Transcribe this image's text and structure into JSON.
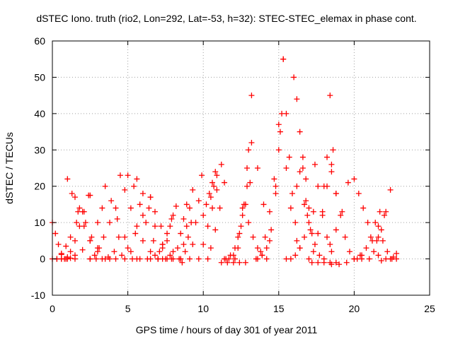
{
  "chart_data": {
    "type": "scatter",
    "title": "dSTEC Iono. truth (rio2, Lon=292, Lat=-53, h=32): STEC-STEC_elemax in phase cont.",
    "xlabel": "GPS time / hours of day 301 of year 2011",
    "ylabel": "dSTEC  / TECUs",
    "xlim": [
      0,
      25
    ],
    "ylim": [
      -10,
      60
    ],
    "xticks": [
      0,
      5,
      10,
      15,
      20,
      25
    ],
    "yticks": [
      -10,
      0,
      10,
      20,
      30,
      40,
      50,
      60
    ],
    "grid": true,
    "marker": "+",
    "color": "#ff0000",
    "series": [
      {
        "x": [
          0.0,
          0.2,
          0.4,
          0.6,
          0.8,
          1.0,
          1.2,
          1.5
        ],
        "y": [
          10,
          7,
          4,
          1.5,
          0,
          0.5,
          0.2,
          0
        ]
      },
      {
        "x": [
          0.0,
          0.3,
          0.6,
          0.9,
          1.2,
          1.5,
          1.8,
          2.1,
          2.4
        ],
        "y": [
          0,
          0,
          0,
          0,
          2,
          5,
          9,
          13,
          17.5
        ]
      },
      {
        "x": [
          0.3,
          0.6,
          0.9,
          1.2,
          1.6,
          2.0,
          2.5
        ],
        "y": [
          0,
          1.2,
          3.5,
          6,
          10,
          13,
          17.5
        ]
      },
      {
        "x": [
          1.0,
          1.3,
          1.7,
          2.1,
          2.5,
          3.0,
          3.5
        ],
        "y": [
          22,
          18,
          13,
          9,
          5,
          2,
          0
        ]
      },
      {
        "x": [
          0.6,
          1.0,
          1.5,
          2.0,
          2.5,
          3.0,
          3.3
        ],
        "y": [
          0,
          0,
          1,
          2.5,
          5,
          10,
          14
        ]
      },
      {
        "x": [
          1.5,
          1.8,
          2.2,
          2.6,
          3.0
        ],
        "y": [
          17,
          14,
          10,
          6,
          3
        ]
      },
      {
        "x": [
          2.5,
          2.8,
          3.1,
          3.4,
          3.8,
          4.2
        ],
        "y": [
          0,
          1,
          3,
          6,
          10,
          14
        ]
      },
      {
        "x": [
          3.5,
          3.9,
          4.3,
          4.8,
          5.2,
          5.6
        ],
        "y": [
          20,
          16,
          11,
          6,
          2,
          0
        ]
      },
      {
        "x": [
          2.5,
          2.9,
          3.3,
          3.7,
          4.1,
          4.4
        ],
        "y": [
          0,
          0,
          0,
          0.5,
          2,
          6
        ]
      },
      {
        "x": [
          4.5,
          4.8,
          5.2,
          5.6,
          6.0,
          6.5,
          7.0
        ],
        "y": [
          23,
          19,
          14,
          9,
          5,
          2,
          0
        ]
      },
      {
        "x": [
          3.8,
          4.2,
          4.6,
          5.0,
          5.5,
          6.0,
          6.5
        ],
        "y": [
          0,
          0,
          1,
          3,
          7,
          12,
          17
        ]
      },
      {
        "x": [
          5.0,
          5.4,
          5.8,
          6.2,
          6.7,
          7.1
        ],
        "y": [
          23,
          20,
          15,
          10,
          5,
          2
        ]
      },
      {
        "x": [
          5.6,
          6.0,
          6.4,
          6.8,
          7.3,
          7.8
        ],
        "y": [
          22,
          18,
          14,
          9,
          4,
          1
        ]
      },
      {
        "x": [
          4.8,
          5.3,
          5.8,
          6.3,
          6.8,
          7.3,
          7.8,
          8.0
        ],
        "y": [
          0,
          0,
          0,
          0,
          1,
          4,
          9,
          12
        ]
      },
      {
        "x": [
          6.5,
          6.8,
          7.2,
          7.6,
          8.0,
          8.5
        ],
        "y": [
          17,
          13,
          9,
          5,
          2,
          0
        ]
      },
      {
        "x": [
          7.0,
          7.3,
          7.6,
          7.9,
          8.2
        ],
        "y": [
          0,
          3,
          7,
          11,
          14.5
        ]
      },
      {
        "x": [
          6.5,
          7.0,
          7.5,
          7.9
        ],
        "y": [
          0,
          0,
          0,
          0
        ]
      },
      {
        "x": [
          7.3,
          7.6,
          8.0,
          8.4
        ],
        "y": [
          0,
          0,
          0,
          0
        ]
      },
      {
        "x": [
          8.3,
          8.5,
          8.7,
          8.9
        ],
        "y": [
          3,
          7,
          11,
          15
        ]
      },
      {
        "x": [
          8.5,
          8.7,
          8.9,
          9.1,
          9.3
        ],
        "y": [
          0,
          4,
          9,
          14,
          19
        ]
      },
      {
        "x": [
          8.6,
          8.8,
          9.0,
          9.2
        ],
        "y": [
          -1,
          2,
          6,
          10
        ]
      },
      {
        "x": [
          9.1,
          9.3,
          9.5,
          9.7,
          9.9
        ],
        "y": [
          0,
          4,
          10,
          16,
          23
        ]
      },
      {
        "x": [
          10.0,
          10.2,
          10.4,
          10.6,
          10.8
        ],
        "y": [
          12,
          15,
          18,
          21,
          24
        ]
      },
      {
        "x": [
          10.5,
          10.7,
          10.9,
          11.2
        ],
        "y": [
          17,
          20,
          23,
          26
        ]
      },
      {
        "x": [
          9.7,
          10.0,
          10.3,
          10.6,
          10.9
        ],
        "y": [
          0,
          4,
          9,
          14,
          19
        ]
      },
      {
        "x": [
          10.3,
          10.5,
          10.8,
          11.1,
          11.4
        ],
        "y": [
          0,
          3,
          8,
          14,
          21
        ]
      },
      {
        "x": [
          11.4,
          11.7,
          12.0,
          12.3,
          12.6,
          12.9
        ],
        "y": [
          0,
          0,
          1,
          6,
          14,
          25
        ]
      },
      {
        "x": [
          11.5,
          11.8,
          12.1,
          12.4,
          12.7,
          13.0,
          13.2
        ],
        "y": [
          0,
          1,
          3,
          7,
          15,
          30,
          45
        ]
      },
      {
        "x": [
          12.1,
          12.3,
          12.5,
          12.8,
          13.1
        ],
        "y": [
          0,
          3,
          9,
          15,
          21
        ]
      },
      {
        "x": [
          11.2,
          11.6,
          12.0,
          12.4,
          12.8
        ],
        "y": [
          -1,
          -1,
          -1,
          -1,
          -1
        ]
      },
      {
        "x": [
          12.6,
          12.9,
          13.2,
          13.6,
          14.0,
          14.4
        ],
        "y": [
          12,
          20,
          32,
          25,
          15,
          5
        ]
      },
      {
        "x": [
          13.0,
          13.3,
          13.6,
          13.9,
          14.2
        ],
        "y": [
          10,
          6,
          3,
          1,
          0
        ]
      },
      {
        "x": [
          13.6,
          13.9,
          14.2,
          14.5,
          14.8,
          15.1,
          15.3
        ],
        "y": [
          0,
          1,
          3,
          8,
          18,
          35,
          55
        ]
      },
      {
        "x": [
          13.5,
          13.8,
          14.1,
          14.4,
          14.7,
          15.0
        ],
        "y": [
          0,
          2,
          6,
          13,
          22,
          37
        ]
      },
      {
        "x": [
          15.3,
          15.5,
          15.7,
          15.9,
          16.1,
          16.4
        ],
        "y": [
          55,
          40,
          28,
          18,
          10,
          3
        ]
      },
      {
        "x": [
          14.8,
          15.0,
          15.2,
          15.5,
          15.8,
          16.2
        ],
        "y": [
          20,
          30,
          40,
          25,
          14,
          5
        ]
      },
      {
        "x": [
          16.0,
          16.2,
          16.4,
          16.6,
          16.8,
          17.2
        ],
        "y": [
          50,
          44,
          35,
          25,
          16,
          7
        ]
      },
      {
        "x": [
          16.2,
          16.4,
          16.6,
          16.8,
          17.0
        ],
        "y": [
          20,
          24,
          28,
          22,
          14
        ]
      },
      {
        "x": [
          16.7,
          16.9,
          17.1,
          17.4,
          17.7
        ],
        "y": [
          15,
          12,
          8,
          4,
          1
        ]
      },
      {
        "x": [
          15.5,
          15.8,
          16.1,
          16.4,
          16.7,
          17.0,
          17.3
        ],
        "y": [
          0,
          0,
          1,
          3,
          6,
          10,
          13
        ]
      },
      {
        "x": [
          17.0,
          17.3,
          17.6,
          17.9,
          18.2,
          18.5
        ],
        "y": [
          0,
          2,
          7,
          13,
          20,
          26
        ]
      },
      {
        "x": [
          17.4,
          17.6,
          17.9,
          18.2,
          18.5
        ],
        "y": [
          26,
          20,
          12,
          6,
          2
        ]
      },
      {
        "x": [
          18.0,
          18.2,
          18.4,
          18.6,
          18.8
        ],
        "y": [
          20,
          28,
          45,
          30,
          18
        ]
      },
      {
        "x": [
          17.2,
          17.6,
          18.0,
          18.4,
          18.8
        ],
        "y": [
          -1,
          -1,
          -1,
          -1,
          -1
        ]
      },
      {
        "x": [
          18.0,
          18.4,
          18.8,
          19.2,
          19.6
        ],
        "y": [
          0,
          4,
          8,
          13,
          21
        ]
      },
      {
        "x": [
          18.5,
          18.8,
          19.1,
          19.4,
          19.7,
          20.0,
          20.5
        ],
        "y": [
          24,
          18,
          12,
          6,
          2,
          0,
          0
        ]
      },
      {
        "x": [
          18.5,
          19.0,
          19.5,
          20.0,
          20.4
        ],
        "y": [
          -1.5,
          -1.5,
          -1,
          0,
          1
        ]
      },
      {
        "x": [
          20.0,
          20.3,
          20.6,
          20.9,
          21.2,
          21.6
        ],
        "y": [
          22,
          18,
          14,
          10,
          5,
          1
        ]
      },
      {
        "x": [
          20.2,
          20.5,
          20.8,
          21.1,
          21.4,
          21.7
        ],
        "y": [
          0,
          1,
          3,
          6,
          10,
          13
        ]
      },
      {
        "x": [
          21.0,
          21.3,
          21.6,
          22.0
        ],
        "y": [
          0,
          2,
          6,
          12
        ]
      },
      {
        "x": [
          21.5,
          21.8,
          22.1,
          22.4
        ],
        "y": [
          5,
          8,
          13,
          19
        ]
      },
      {
        "x": [
          21.6,
          21.9,
          22.2,
          22.5,
          22.8
        ],
        "y": [
          9,
          5,
          2,
          0,
          0
        ]
      },
      {
        "x": [
          21.8,
          22.1,
          22.4,
          22.6,
          22.8
        ],
        "y": [
          -0.5,
          0,
          0,
          0.5,
          1.5
        ]
      }
    ]
  }
}
